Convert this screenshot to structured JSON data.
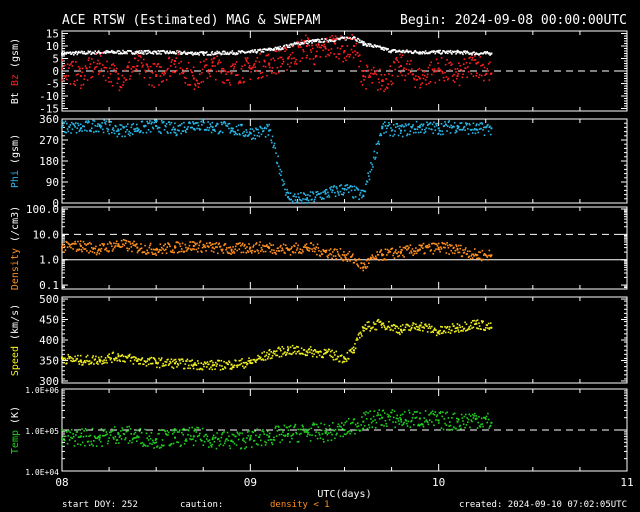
{
  "header": {
    "title": "ACE RTSW (Estimated) MAG & SWEPAM",
    "begin": "Begin: 2024-09-08 00:00:00UTC"
  },
  "footer": {
    "start_doy": "start DOY: 252",
    "caution": "caution:",
    "density_note": "density < 1",
    "created": "created: 2024-09-10 07:02:05UTC"
  },
  "colors": {
    "bt": "#ffffff",
    "bz": "#ff2020",
    "phi": "#2ab8e8",
    "density": "#ff9020",
    "speed": "#f0f020",
    "temp": "#20d020",
    "axis": "#ffffff"
  },
  "chart_data": {
    "type": "scatter",
    "title": "ACE RTSW (Estimated) MAG & SWEPAM",
    "xlabel": "UTC(days)",
    "x_ticks": [
      "08",
      "09",
      "10",
      "11"
    ],
    "xlim": [
      0,
      3
    ],
    "data_end_day": 2.28,
    "panels": [
      {
        "name": "mag",
        "ylabel_parts": [
          "Bt",
          "Bz",
          "(gsm)"
        ],
        "ylim": [
          -16,
          16
        ],
        "ticks": [
          15,
          10,
          5,
          0,
          -5,
          -10,
          -15
        ],
        "tick_labels": [
          "15",
          "10",
          "5",
          "0",
          "-5",
          "-10",
          "-15"
        ],
        "dashed": [
          0
        ],
        "series": [
          {
            "name": "Bt",
            "color": "#ffffff",
            "x": [
              0.0,
              0.25,
              0.5,
              0.75,
              1.0,
              1.15,
              1.25,
              1.35,
              1.45,
              1.55,
              1.6,
              1.75,
              1.9,
              2.0,
              2.1,
              2.2,
              2.28
            ],
            "y": [
              7,
              7.5,
              7.5,
              7,
              7.5,
              9,
              11,
              12,
              12.5,
              13.5,
              11,
              8,
              7.5,
              7.5,
              7.5,
              7,
              7
            ]
          },
          {
            "name": "Bz",
            "color": "#ff2020",
            "x": [
              0.0,
              0.1,
              0.2,
              0.3,
              0.4,
              0.5,
              0.6,
              0.7,
              0.8,
              0.9,
              1.0,
              1.1,
              1.2,
              1.3,
              1.35,
              1.4,
              1.45,
              1.5,
              1.55,
              1.6,
              1.7,
              1.8,
              1.9,
              2.0,
              2.1,
              2.2,
              2.28
            ],
            "y": [
              1,
              -2,
              3,
              -3,
              2,
              -2,
              4,
              -3,
              2,
              -1,
              1,
              3,
              5,
              10,
              6,
              9,
              11,
              8,
              10,
              -2,
              -4,
              2,
              -3,
              1,
              -2,
              3,
              -1
            ]
          }
        ]
      },
      {
        "name": "phi",
        "ylabel_parts": [
          "Phi",
          "(gsm)"
        ],
        "ylim": [
          0,
          360
        ],
        "ticks": [
          360,
          270,
          180,
          90,
          0
        ],
        "tick_labels": [
          "360",
          "270",
          "180",
          "90",
          "0"
        ],
        "dashed": [],
        "series": [
          {
            "name": "Phi",
            "color": "#2ab8e8",
            "x": [
              0.0,
              0.1,
              0.2,
              0.3,
              0.4,
              0.5,
              0.6,
              0.7,
              0.8,
              0.9,
              1.0,
              1.1,
              1.2,
              1.3,
              1.4,
              1.5,
              1.6,
              1.7,
              1.8,
              1.9,
              2.0,
              2.1,
              2.2,
              2.28
            ],
            "y": [
              325,
              320,
              335,
              310,
              320,
              330,
              315,
              340,
              325,
              320,
              300,
              310,
              25,
              15,
              40,
              60,
              30,
              320,
              310,
              325,
              320,
              330,
              315,
              320
            ]
          }
        ]
      },
      {
        "name": "density",
        "ylabel_parts": [
          "Density",
          "(/cm3)"
        ],
        "scale": "log",
        "ylim": [
          0.07,
          120
        ],
        "ticks": [
          100,
          10,
          1,
          0.1
        ],
        "tick_labels": [
          "100.0",
          "10.0",
          "1.0",
          "0.1"
        ],
        "solid": [
          1
        ],
        "dashed": [
          10
        ],
        "series": [
          {
            "name": "Density",
            "color": "#ff9020",
            "x": [
              0.0,
              0.1,
              0.2,
              0.3,
              0.4,
              0.5,
              0.6,
              0.7,
              0.8,
              0.9,
              1.0,
              1.1,
              1.2,
              1.3,
              1.4,
              1.5,
              1.6,
              1.7,
              1.8,
              1.9,
              2.0,
              2.1,
              2.2,
              2.28
            ],
            "y": [
              3,
              3.5,
              2.5,
              4,
              3,
              2.5,
              3,
              3.5,
              3,
              2.5,
              3,
              3,
              2.5,
              3,
              2,
              1.5,
              0.5,
              1.5,
              2,
              2.5,
              3,
              2.5,
              1.5,
              1.5
            ]
          }
        ]
      },
      {
        "name": "speed",
        "ylabel_parts": [
          "Speed",
          "(km/s)"
        ],
        "ylim": [
          295,
          505
        ],
        "ticks": [
          500,
          450,
          400,
          350,
          300
        ],
        "tick_labels": [
          "500",
          "450",
          "400",
          "350",
          "300"
        ],
        "dashed": [],
        "series": [
          {
            "name": "Speed",
            "color": "#f0f020",
            "x": [
              0.0,
              0.1,
              0.2,
              0.3,
              0.4,
              0.5,
              0.6,
              0.7,
              0.8,
              0.9,
              1.0,
              1.1,
              1.2,
              1.3,
              1.4,
              1.5,
              1.55,
              1.6,
              1.7,
              1.8,
              1.9,
              2.0,
              2.1,
              2.2,
              2.28
            ],
            "y": [
              355,
              350,
              352,
              360,
              350,
              345,
              343,
              340,
              338,
              340,
              345,
              365,
              375,
              372,
              368,
              355,
              375,
              430,
              440,
              425,
              435,
              420,
              430,
              440,
              430
            ]
          }
        ]
      },
      {
        "name": "temp",
        "ylabel_parts": [
          "Temp",
          "(K)"
        ],
        "scale": "log",
        "ylim": [
          10000,
          1000000
        ],
        "ticks": [
          1000000,
          100000,
          10000
        ],
        "tick_labels": [
          "1.0E+06",
          "1.0E+05",
          "1.0E+04"
        ],
        "dashed": [
          100000
        ],
        "series": [
          {
            "name": "Temp",
            "color": "#20d020",
            "x": [
              0.0,
              0.1,
              0.2,
              0.3,
              0.4,
              0.5,
              0.6,
              0.7,
              0.8,
              0.9,
              1.0,
              1.1,
              1.2,
              1.3,
              1.4,
              1.5,
              1.6,
              1.7,
              1.8,
              1.9,
              2.0,
              2.1,
              2.2,
              2.28
            ],
            "y": [
              60000,
              70000,
              65000,
              80000,
              70000,
              60000,
              65000,
              70000,
              60000,
              55000,
              60000,
              70000,
              80000,
              90000,
              85000,
              100000,
              160000,
              200000,
              180000,
              190000,
              170000,
              160000,
              190000,
              150000
            ]
          }
        ]
      }
    ]
  }
}
